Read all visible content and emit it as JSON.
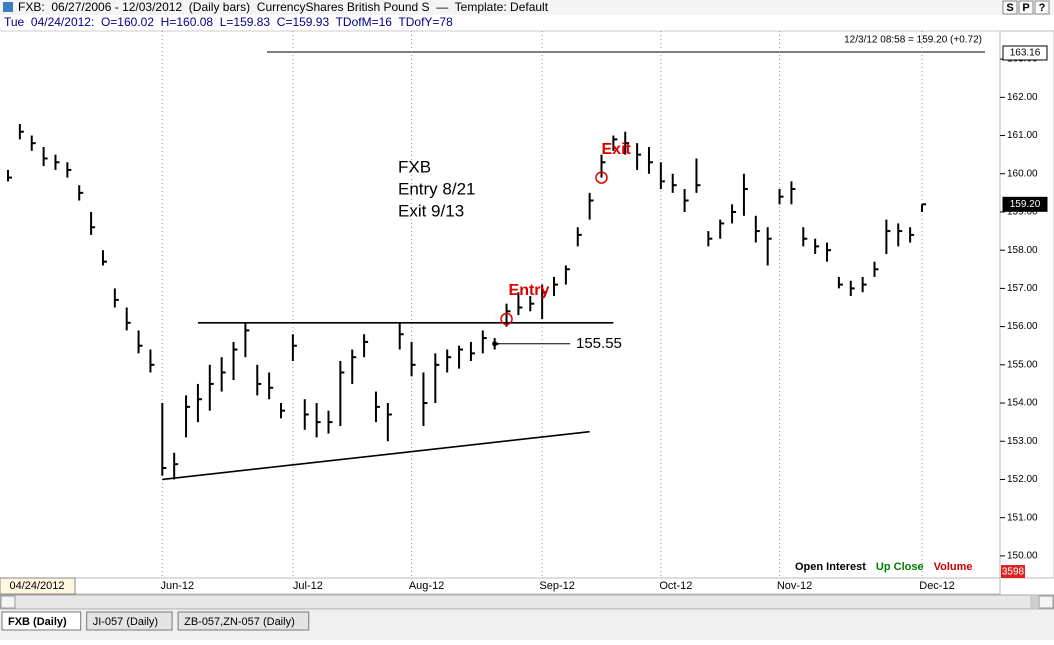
{
  "header": {
    "title": "FXB:  06/27/2006 - 12/03/2012  (Daily bars)  CurrencyShares British Pound S  —  Template: Default",
    "buttons": [
      "S",
      "P",
      "?"
    ],
    "info": "Tue  04/24/2012:  O=160.02  H=160.08  L=159.83  C=159.93  TDofM=16  TDofY=78"
  },
  "chart_data": {
    "type": "ohlc",
    "categories": [
      "04/24/2012",
      null,
      null,
      null,
      null,
      null,
      null,
      null,
      null,
      null,
      null,
      null,
      null,
      "Jun-12",
      null,
      null,
      null,
      null,
      null,
      null,
      null,
      null,
      null,
      null,
      "Jul-12",
      null,
      null,
      null,
      null,
      null,
      null,
      null,
      null,
      null,
      "Aug-12",
      null,
      null,
      null,
      null,
      null,
      null,
      null,
      null,
      null,
      null,
      "Sep-12",
      null,
      null,
      null,
      null,
      null,
      null,
      null,
      null,
      null,
      "Oct-12",
      null,
      null,
      null,
      null,
      null,
      null,
      null,
      null,
      null,
      "Nov-12",
      null,
      null,
      null,
      null,
      null,
      null,
      null,
      null,
      null,
      null,
      null,
      "Dec-12"
    ],
    "high": [
      160.1,
      161.3,
      161.0,
      160.7,
      160.5,
      160.3,
      159.7,
      159.0,
      158.0,
      157.0,
      156.5,
      155.9,
      155.4,
      154.0,
      152.7,
      154.2,
      154.5,
      155.0,
      155.2,
      155.6,
      156.1,
      155.0,
      154.8,
      154.0,
      155.8,
      154.1,
      154.0,
      153.8,
      155.1,
      155.4,
      155.8,
      154.3,
      154.0,
      156.1,
      155.6,
      154.8,
      155.3,
      155.4,
      155.5,
      155.6,
      155.9,
      155.7,
      156.6,
      156.9,
      156.8,
      157.1,
      157.3,
      157.6,
      158.6,
      159.5,
      160.5,
      161.0,
      161.1,
      160.8,
      160.7,
      160.3,
      160.0,
      159.6,
      160.4,
      158.5,
      158.8,
      159.2,
      160.0,
      158.9,
      158.6,
      159.6,
      159.8,
      158.6,
      158.3,
      158.2,
      157.3,
      157.2,
      157.3,
      157.7,
      158.8,
      158.7,
      158.6,
      159.2
    ],
    "low": [
      159.8,
      160.9,
      160.6,
      160.2,
      160.1,
      159.9,
      159.3,
      158.4,
      157.6,
      156.5,
      155.9,
      155.3,
      154.8,
      152.1,
      152.0,
      153.1,
      153.5,
      153.8,
      154.3,
      154.6,
      155.2,
      154.2,
      154.1,
      153.6,
      155.1,
      153.3,
      153.1,
      153.2,
      153.4,
      154.5,
      155.2,
      153.5,
      153.0,
      155.4,
      154.7,
      153.4,
      154.0,
      154.8,
      154.9,
      155.1,
      155.3,
      155.4,
      156.0,
      156.3,
      156.4,
      156.2,
      156.8,
      157.1,
      158.1,
      158.8,
      159.9,
      160.6,
      160.5,
      160.1,
      160.0,
      159.6,
      159.5,
      159.0,
      159.5,
      158.1,
      158.3,
      158.7,
      158.9,
      158.2,
      157.6,
      159.2,
      159.2,
      158.1,
      157.9,
      157.7,
      157.0,
      156.8,
      156.9,
      157.3,
      157.9,
      158.1,
      158.2,
      159.0
    ],
    "close": [
      159.9,
      161.1,
      160.8,
      160.4,
      160.3,
      160.1,
      159.5,
      158.6,
      157.7,
      156.7,
      156.1,
      155.5,
      155.0,
      152.3,
      152.4,
      153.9,
      154.1,
      154.5,
      154.8,
      155.4,
      155.9,
      154.5,
      154.4,
      153.8,
      155.5,
      153.7,
      153.5,
      153.5,
      154.8,
      155.2,
      155.6,
      153.9,
      153.7,
      155.8,
      155.0,
      154.0,
      155.0,
      155.2,
      155.4,
      155.3,
      155.7,
      155.55,
      156.4,
      156.5,
      156.6,
      156.9,
      157.1,
      157.5,
      158.4,
      159.3,
      160.3,
      160.9,
      160.8,
      160.5,
      160.3,
      159.8,
      159.7,
      159.3,
      159.7,
      158.3,
      158.7,
      159.0,
      159.6,
      158.5,
      158.3,
      159.4,
      159.6,
      158.3,
      158.1,
      158.0,
      157.1,
      157.0,
      157.1,
      157.5,
      158.5,
      158.5,
      158.4,
      159.2
    ],
    "color": "#000000",
    "ylim": [
      149.5,
      163.5
    ],
    "yticks": [
      {
        "value": 150,
        "label": "150.00"
      },
      {
        "value": 151,
        "label": "151.00"
      },
      {
        "value": 152,
        "label": "152.00"
      },
      {
        "value": 153,
        "label": "153.00"
      },
      {
        "value": 154,
        "label": "154.00"
      },
      {
        "value": 155,
        "label": "155.00"
      },
      {
        "value": 156,
        "label": "156.00"
      },
      {
        "value": 157,
        "label": "157.00"
      },
      {
        "value": 158,
        "label": "158.00"
      },
      {
        "value": 159,
        "label": "159.00"
      },
      {
        "value": 160,
        "label": "160.00"
      },
      {
        "value": 161,
        "label": "161.00"
      },
      {
        "value": 162,
        "label": "162.00"
      },
      {
        "value": 163,
        "label": "163.00"
      }
    ],
    "last_quote": "12/3/12 08:58 = 159.20 (+0.72)",
    "price_boxes": [
      {
        "value": 163.16,
        "label": "163.16"
      },
      {
        "value": 159.2,
        "label": "159.20"
      }
    ],
    "note": [
      "FXB",
      "Entry 8/21",
      "Exit 9/13"
    ],
    "entry": {
      "label": "Entry",
      "x": 42,
      "y": 156.2
    },
    "exit": {
      "label": "Exit",
      "x": 50,
      "y": 159.9
    },
    "level": {
      "value": 155.55,
      "label": "155.55",
      "x": 41
    },
    "lines": [
      {
        "x": [
          16,
          51
        ],
        "y": [
          156.1,
          156.1
        ]
      },
      {
        "x": [
          13,
          49
        ],
        "y": [
          152.0,
          153.25
        ]
      }
    ],
    "indicators": [
      {
        "name": "Open Interest",
        "color": "#000000"
      },
      {
        "name": "Up Close",
        "color": "#008000"
      },
      {
        "name": "Volume",
        "color": "#cc0000"
      }
    ],
    "volume": 3598
  },
  "tabs": [
    "FXB (Daily)",
    "JI-057 (Daily)",
    "ZB-057,ZN-057 (Daily)"
  ]
}
